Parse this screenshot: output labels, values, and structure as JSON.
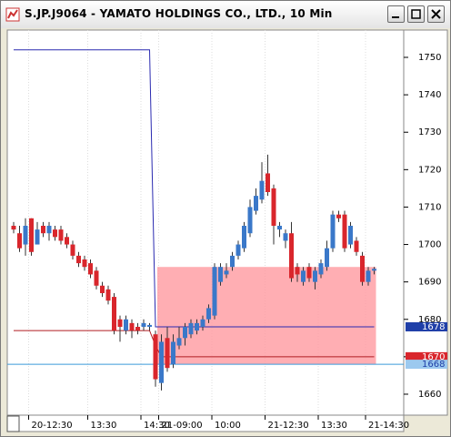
{
  "window_title": "S.JP.J9064 - YAMATO HOLDINGS CO., LTD., 10 Min",
  "chart_data": {
    "type": "candlestick",
    "categories": [
      null,
      null,
      null,
      null,
      null,
      null,
      null,
      null,
      null,
      null,
      null,
      null,
      null,
      null,
      null,
      null,
      null,
      null,
      null,
      null,
      null,
      null,
      null,
      null,
      null,
      null,
      null,
      null,
      null,
      null,
      null,
      null,
      null,
      null,
      null,
      null,
      null,
      null,
      null,
      null,
      null,
      null,
      null,
      null,
      null,
      null,
      null,
      null,
      null,
      null,
      null,
      null,
      null,
      null,
      null,
      null,
      null,
      null,
      null,
      null,
      null,
      null
    ],
    "open": [
      1705,
      1703,
      1700,
      1707,
      1700,
      1705,
      1703,
      1704,
      1704,
      1702,
      1700,
      1697,
      1696,
      1695,
      1693,
      1689,
      1688,
      1686,
      1680,
      1677,
      1679,
      1678,
      1678,
      1678,
      1676,
      1663,
      1675,
      1668,
      1673,
      1675,
      1676,
      1677,
      1678,
      1680,
      1681,
      1690,
      1692,
      1694,
      1697,
      1699,
      1703,
      1709,
      1712,
      1719,
      1715,
      1704,
      1701,
      1703,
      1694,
      1690,
      1694,
      1690,
      1692,
      1694,
      1699,
      1708,
      1708,
      1700,
      1701,
      1697,
      1690,
      1693
    ],
    "high": [
      1706,
      1705,
      1707,
      1707,
      1706,
      1706,
      1706,
      1705,
      1705,
      1703,
      1701,
      1698,
      1697,
      1696,
      1694,
      1690,
      1689,
      1687,
      1681,
      1681,
      1680,
      1679,
      1680,
      1679,
      1677,
      1676,
      1678,
      1676,
      1678,
      1679,
      1680,
      1680,
      1681,
      1684,
      1695,
      1695,
      1695,
      1698,
      1701,
      1706,
      1712,
      1715,
      1722,
      1724,
      1716,
      1706,
      1704,
      1706,
      1695,
      1694,
      1695,
      1694,
      1696,
      1701,
      1709,
      1709,
      1709,
      1706,
      1702,
      1698,
      1694,
      1694
    ],
    "low": [
      1703,
      1698,
      1697,
      1697,
      1700,
      1702,
      1701,
      1701,
      1700,
      1699,
      1696,
      1694,
      1693,
      1691,
      1688,
      1686,
      1684,
      1676,
      1674,
      1676,
      1675,
      1676,
      1677,
      1677,
      1662,
      1661,
      1666,
      1667,
      1672,
      1673,
      1675,
      1676,
      1677,
      1679,
      1680,
      1689,
      1691,
      1693,
      1696,
      1698,
      1702,
      1708,
      1711,
      1713,
      1700,
      1702,
      1699,
      1690,
      1690,
      1689,
      1690,
      1688,
      1691,
      1693,
      1698,
      1706,
      1698,
      1699,
      1697,
      1689,
      1689,
      1692
    ],
    "close": [
      1704,
      1699,
      1705,
      1698,
      1704,
      1703,
      1705,
      1702,
      1701,
      1700,
      1697,
      1695,
      1694,
      1692,
      1689,
      1687,
      1685,
      1677,
      1678,
      1680,
      1677,
      1677,
      1679,
      1678.5,
      1664,
      1674,
      1667,
      1674,
      1675,
      1678,
      1679,
      1679,
      1680,
      1683,
      1694,
      1694,
      1693,
      1697,
      1700,
      1705,
      1710,
      1713,
      1717,
      1714,
      1705,
      1705,
      1703,
      1691,
      1692,
      1693,
      1691,
      1693,
      1695,
      1699,
      1708,
      1707,
      1699,
      1705,
      1698,
      1690,
      1693,
      1693.5
    ],
    "up_color": "#3a78c9",
    "down_color": "#d9262c",
    "indicator": {
      "color": "#2a2ab0",
      "values": [
        1752,
        1752,
        1752,
        1752,
        1752,
        1752,
        1752,
        1752,
        1752,
        1752,
        1752,
        1752,
        1752,
        1752,
        1752,
        1752,
        1752,
        1752,
        1752,
        1752,
        1752,
        1752,
        1752,
        1752,
        1678,
        1678,
        1678,
        1678,
        1678,
        1678,
        1678,
        1678,
        1678,
        1678,
        1678,
        1678,
        1678,
        1678,
        1678,
        1678,
        1678,
        1678,
        1678,
        1678,
        1678,
        1678,
        1678,
        1678,
        1678,
        1678,
        1678,
        1678,
        1678,
        1678,
        1678,
        1678,
        1678,
        1678,
        1678,
        1678,
        1678,
        1678
      ]
    },
    "signal": {
      "color": "#b01c22",
      "values": [
        1677,
        1677,
        1677,
        1677,
        1677,
        1677,
        1677,
        1677,
        1677,
        1677,
        1677,
        1677,
        1677,
        1677,
        1677,
        1677,
        1677,
        1677,
        1677,
        1677,
        1677,
        1677,
        1677,
        1677,
        1673,
        1670,
        1670,
        1670,
        1670,
        1670,
        1670,
        1670,
        1670,
        1670,
        1670,
        1670,
        1670,
        1670,
        1670,
        1670,
        1670,
        1670,
        1670,
        1670,
        1670,
        1670,
        1670,
        1670,
        1670,
        1670,
        1670,
        1670,
        1670,
        1670,
        1670,
        1670,
        1670,
        1670,
        1670,
        1670,
        1670,
        1670
      ]
    },
    "zone": {
      "from": 24,
      "to": 61,
      "ylim": [
        1668,
        1694
      ],
      "color": "#ff9aa0"
    },
    "levels": [
      {
        "value": 1678,
        "color": "#1f3fa8",
        "text_color": "#ffffff"
      },
      {
        "value": 1670,
        "color": "#d9262c",
        "text_color": "#ffffff"
      },
      {
        "value": 1668,
        "color": "#9cc9ef",
        "text_color": "#1f3fa8"
      }
    ],
    "baseline": {
      "value": 1668,
      "color": "#3a9ad9"
    },
    "ylim": [
      1654.4,
      1757.3
    ],
    "yticks": [
      1660,
      1670,
      1680,
      1690,
      1700,
      1710,
      1720,
      1730,
      1740,
      1750
    ],
    "xticks": [
      {
        "value": 3,
        "label": "20-12:30"
      },
      {
        "value": 13,
        "label": "13:30"
      },
      {
        "value": 22,
        "label": "14:30"
      },
      {
        "value": 25,
        "label": "21-09:00"
      },
      {
        "value": 34,
        "label": "10:00"
      },
      {
        "value": 43,
        "label": "21-12:30"
      },
      {
        "value": 52,
        "label": "13:30"
      },
      {
        "value": 60,
        "label": "21-14:30"
      }
    ]
  }
}
